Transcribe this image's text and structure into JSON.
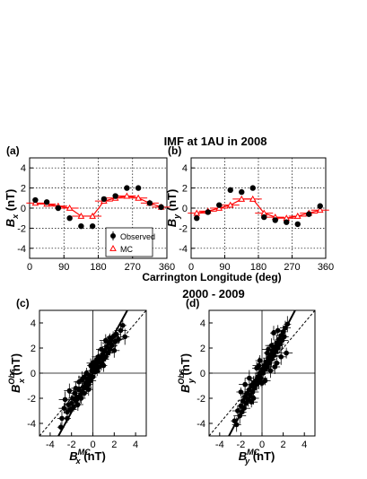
{
  "top_title": "IMF at 1AU in 2008",
  "top_xlabel": "Carrington Longitude (deg)",
  "bottom_title": "2000 - 2009",
  "colors": {
    "observed": "#000000",
    "mc": "#ff0000",
    "diagonal": "#000000"
  },
  "chart_data": [
    {
      "id": "a",
      "type": "line",
      "panel_label": "(a)",
      "ylabel_main": "B",
      "ylabel_sub": "x",
      "ylabel_unit": "(nT)",
      "xlim": [
        0,
        360
      ],
      "ylim": [
        -5,
        5
      ],
      "xticks": [
        0,
        90,
        180,
        270,
        360
      ],
      "yticks": [
        -4,
        -2,
        0,
        2,
        4
      ],
      "grid": true,
      "legend": "bottom-right",
      "series": [
        {
          "name": "Observed",
          "marker": "circle",
          "x": [
            15,
            45,
            75,
            105,
            135,
            165,
            195,
            225,
            255,
            285,
            315,
            345
          ],
          "y": [
            0.8,
            0.6,
            0.0,
            -1.0,
            -1.8,
            -1.8,
            0.9,
            1.2,
            2.0,
            2.0,
            0.5,
            0.1
          ]
        },
        {
          "name": "MC",
          "marker": "triangle",
          "x": [
            15,
            45,
            75,
            105,
            135,
            165,
            195,
            225,
            255,
            285,
            315,
            345
          ],
          "y": [
            0.5,
            0.4,
            0.2,
            0.0,
            -0.8,
            -0.8,
            0.7,
            1.0,
            1.2,
            1.0,
            0.5,
            0.1
          ]
        }
      ]
    },
    {
      "id": "b",
      "type": "line",
      "panel_label": "(b)",
      "ylabel_main": "B",
      "ylabel_sub": "y",
      "ylabel_unit": "(nT)",
      "xlim": [
        0,
        360
      ],
      "ylim": [
        -5,
        5
      ],
      "xticks": [
        0,
        90,
        180,
        270,
        360
      ],
      "yticks": [
        -4,
        -2,
        0,
        2,
        4
      ],
      "grid": true,
      "series": [
        {
          "name": "Observed",
          "marker": "circle",
          "x": [
            15,
            45,
            75,
            105,
            135,
            165,
            195,
            225,
            255,
            285,
            315,
            345
          ],
          "y": [
            -1.0,
            -0.4,
            0.3,
            1.8,
            1.6,
            2.0,
            -0.9,
            -1.2,
            -1.4,
            -1.6,
            -0.6,
            0.2
          ]
        },
        {
          "name": "MC",
          "marker": "triangle",
          "x": [
            15,
            45,
            75,
            105,
            135,
            165,
            195,
            225,
            255,
            285,
            315,
            345
          ],
          "y": [
            -0.5,
            -0.3,
            0.0,
            0.3,
            0.9,
            0.9,
            -0.5,
            -0.9,
            -1.0,
            -0.8,
            -0.5,
            -0.2
          ]
        }
      ]
    },
    {
      "id": "c",
      "type": "scatter",
      "panel_label": "(c)",
      "ylabel_main": "B",
      "ylabel_sub": "x",
      "ylabel_sup": "Obs",
      "ylabel_unit": "(nT)",
      "xlabel_main": "B",
      "xlabel_sub": "x",
      "xlabel_sup": "MC",
      "xlabel_unit": "(nT)",
      "xlim": [
        -5,
        5
      ],
      "ylim": [
        -5,
        5
      ],
      "xticks": [
        -4,
        -2,
        0,
        2,
        4
      ],
      "yticks": [
        -4,
        -2,
        0,
        2,
        4
      ],
      "zero_lines": true,
      "lines": [
        {
          "style": "dashed",
          "slope": 1.0,
          "intercept": 0.0
        },
        {
          "style": "solid",
          "slope": 1.55,
          "intercept": 0.0
        }
      ],
      "points": [
        [
          -3.0,
          -4.3
        ],
        [
          -2.9,
          -3.6
        ],
        [
          -2.7,
          -2.8
        ],
        [
          -2.6,
          -2.1
        ],
        [
          -2.4,
          -3.1
        ],
        [
          -2.3,
          -2.5
        ],
        [
          -2.2,
          -1.4
        ],
        [
          -2.1,
          -2.9
        ],
        [
          -2.0,
          -2.4
        ],
        [
          -1.9,
          -2.0
        ],
        [
          -1.8,
          -2.7
        ],
        [
          -1.7,
          -1.6
        ],
        [
          -1.6,
          -2.2
        ],
        [
          -1.5,
          -1.9
        ],
        [
          -1.4,
          -2.5
        ],
        [
          -1.3,
          -1.3
        ],
        [
          -1.2,
          -1.8
        ],
        [
          -1.1,
          -2.0
        ],
        [
          -1.0,
          -1.5
        ],
        [
          -0.9,
          -1.1
        ],
        [
          -0.8,
          -1.6
        ],
        [
          -0.7,
          -0.8
        ],
        [
          -0.6,
          -1.2
        ],
        [
          -0.5,
          -0.5
        ],
        [
          -0.4,
          -0.9
        ],
        [
          -0.3,
          -0.2
        ],
        [
          -0.2,
          -0.6
        ],
        [
          -0.1,
          0.2
        ],
        [
          0.0,
          -0.3
        ],
        [
          0.1,
          0.4
        ],
        [
          0.2,
          0.1
        ],
        [
          0.3,
          0.6
        ],
        [
          0.4,
          0.2
        ],
        [
          0.5,
          0.9
        ],
        [
          0.6,
          0.5
        ],
        [
          0.7,
          1.2
        ],
        [
          0.8,
          0.8
        ],
        [
          0.9,
          1.5
        ],
        [
          1.0,
          1.1
        ],
        [
          1.1,
          1.8
        ],
        [
          1.2,
          1.3
        ],
        [
          1.3,
          2.1
        ],
        [
          1.4,
          1.6
        ],
        [
          1.5,
          2.4
        ],
        [
          1.6,
          1.9
        ],
        [
          1.7,
          2.6
        ],
        [
          1.8,
          2.2
        ],
        [
          1.9,
          2.9
        ],
        [
          2.1,
          2.5
        ],
        [
          2.2,
          3.1
        ],
        [
          2.4,
          2.7
        ],
        [
          2.6,
          3.4
        ],
        [
          2.8,
          3.8
        ],
        [
          3.0,
          2.9
        ],
        [
          -1.3,
          -0.7
        ],
        [
          -0.8,
          -0.3
        ],
        [
          -0.2,
          0.6
        ],
        [
          0.3,
          1.0
        ],
        [
          0.8,
          1.9
        ],
        [
          1.2,
          2.6
        ],
        [
          -2.4,
          -3.6
        ],
        [
          -1.6,
          -1.2
        ],
        [
          -0.6,
          0.0
        ],
        [
          0.5,
          1.3
        ],
        [
          1.0,
          0.6
        ],
        [
          1.6,
          2.8
        ],
        [
          2.0,
          1.8
        ],
        [
          0.0,
          0.8
        ],
        [
          -1.0,
          -0.5
        ],
        [
          -0.4,
          -1.3
        ]
      ]
    },
    {
      "id": "d",
      "type": "scatter",
      "panel_label": "(d)",
      "ylabel_main": "B",
      "ylabel_sub": "y",
      "ylabel_sup": "Obs",
      "ylabel_unit": "(nT)",
      "xlabel_main": "B",
      "xlabel_sub": "y",
      "xlabel_sup": "MC",
      "xlabel_unit": "(nT)",
      "xlim": [
        -5,
        5
      ],
      "ylim": [
        -5,
        5
      ],
      "xticks": [
        -4,
        -2,
        0,
        2,
        4
      ],
      "yticks": [
        -4,
        -2,
        0,
        2,
        4
      ],
      "zero_lines": true,
      "lines": [
        {
          "style": "dashed",
          "slope": 1.0,
          "intercept": 0.0
        },
        {
          "style": "solid",
          "slope": 1.6,
          "intercept": 0.0
        }
      ],
      "points": [
        [
          -2.6,
          -3.8
        ],
        [
          -2.4,
          -4.1
        ],
        [
          -2.3,
          -3.0
        ],
        [
          -2.1,
          -3.4
        ],
        [
          -2.0,
          -2.6
        ],
        [
          -1.9,
          -3.1
        ],
        [
          -1.8,
          -2.2
        ],
        [
          -1.7,
          -2.8
        ],
        [
          -1.6,
          -1.9
        ],
        [
          -1.5,
          -2.4
        ],
        [
          -1.4,
          -1.6
        ],
        [
          -1.3,
          -2.1
        ],
        [
          -1.2,
          -1.3
        ],
        [
          -1.1,
          -1.8
        ],
        [
          -1.0,
          -1.0
        ],
        [
          -0.9,
          -1.5
        ],
        [
          -0.8,
          -0.8
        ],
        [
          -0.7,
          -1.2
        ],
        [
          -0.6,
          -0.6
        ],
        [
          -0.5,
          -0.9
        ],
        [
          -0.4,
          -0.3
        ],
        [
          -0.3,
          -0.7
        ],
        [
          -0.2,
          0.0
        ],
        [
          -0.1,
          -0.4
        ],
        [
          0.0,
          0.3
        ],
        [
          0.1,
          0.0
        ],
        [
          0.2,
          0.6
        ],
        [
          0.3,
          0.3
        ],
        [
          0.4,
          0.9
        ],
        [
          0.5,
          0.5
        ],
        [
          0.6,
          1.2
        ],
        [
          0.7,
          0.8
        ],
        [
          0.8,
          1.5
        ],
        [
          0.9,
          1.1
        ],
        [
          1.0,
          1.8
        ],
        [
          1.1,
          1.4
        ],
        [
          1.2,
          2.1
        ],
        [
          1.3,
          1.7
        ],
        [
          1.4,
          2.4
        ],
        [
          1.5,
          2.0
        ],
        [
          1.6,
          2.7
        ],
        [
          1.7,
          2.3
        ],
        [
          1.8,
          3.0
        ],
        [
          1.9,
          2.6
        ],
        [
          2.0,
          3.3
        ],
        [
          2.1,
          2.9
        ],
        [
          2.2,
          3.6
        ],
        [
          2.3,
          1.6
        ],
        [
          2.4,
          3.9
        ],
        [
          -0.5,
          0.4
        ],
        [
          0.3,
          -0.6
        ],
        [
          0.9,
          2.2
        ],
        [
          1.4,
          0.8
        ],
        [
          -1.2,
          -0.4
        ],
        [
          -0.8,
          -2.0
        ],
        [
          0.6,
          1.9
        ],
        [
          1.1,
          3.2
        ],
        [
          -0.2,
          1.0
        ],
        [
          1.8,
          1.3
        ],
        [
          -1.6,
          -0.9
        ],
        [
          0.0,
          -0.8
        ],
        [
          0.8,
          0.2
        ],
        [
          1.5,
          3.4
        ],
        [
          -0.3,
          0.6
        ],
        [
          0.5,
          1.6
        ],
        [
          -2.0,
          -1.5
        ],
        [
          1.2,
          0.5
        ],
        [
          -1.0,
          -2.3
        ]
      ]
    }
  ]
}
